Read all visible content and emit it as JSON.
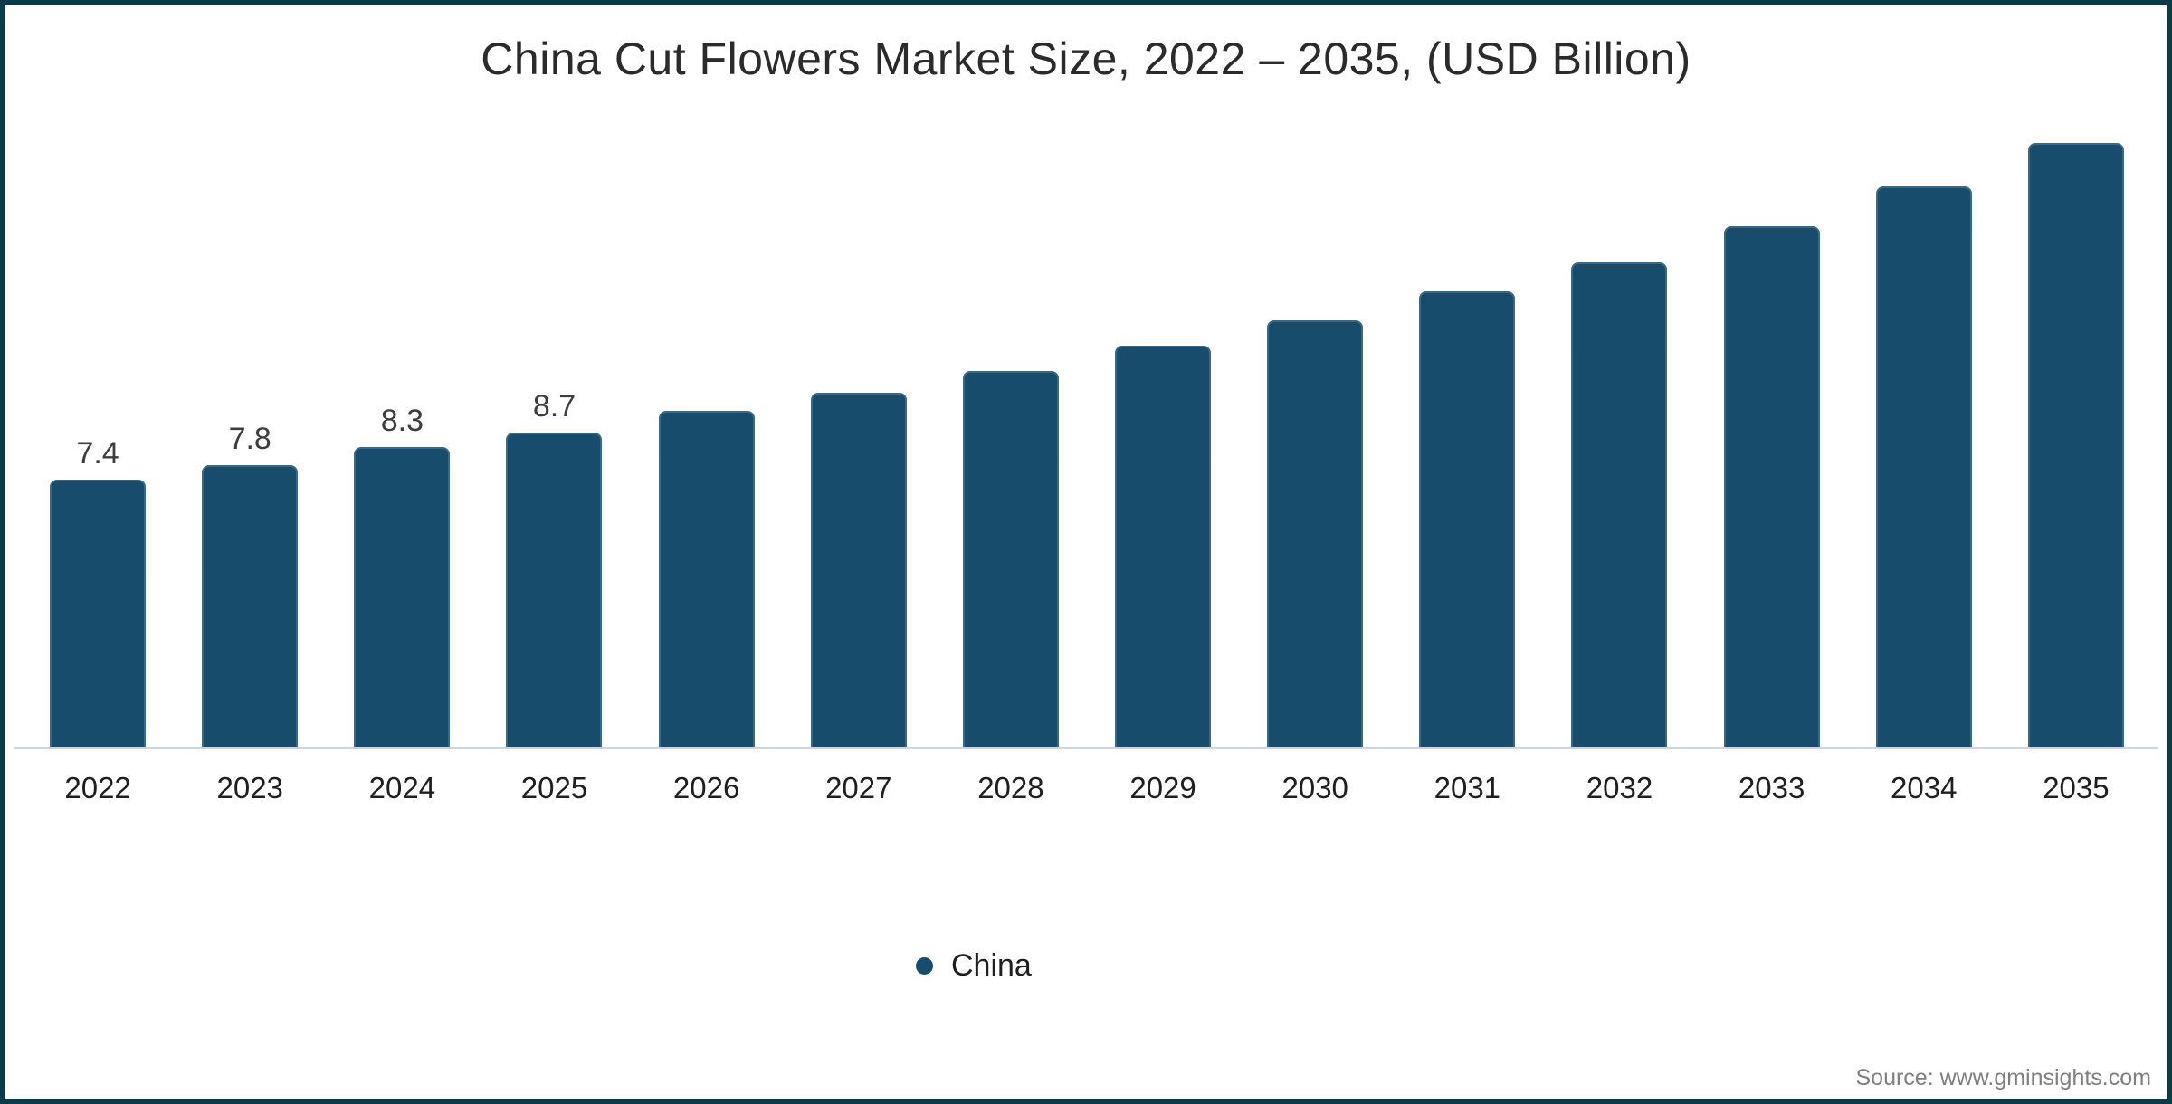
{
  "source": "Source: www.gminsights.com",
  "legend": {
    "items": [
      {
        "label": "China",
        "marker": "circle",
        "color": "#174c6c"
      }
    ]
  },
  "colors": {
    "bar_fill": "#174c6c",
    "frame_border": "#0d3a48",
    "axis_line": "#ccd4e2",
    "title_text": "#2b2b2b",
    "data_label_text": "#3d3d3d",
    "source_text": "#7f7f7f"
  },
  "chart_data": {
    "type": "bar",
    "title": "China Cut Flowers Market Size, 2022 – 2035, (USD Billion)",
    "categories": [
      "2022",
      "2023",
      "2024",
      "2025",
      "2026",
      "2027",
      "2028",
      "2029",
      "2030",
      "2031",
      "2032",
      "2033",
      "2034",
      "2035"
    ],
    "series": [
      {
        "name": "China",
        "values": [
          7.4,
          7.8,
          8.3,
          8.7,
          9.3,
          9.8,
          10.4,
          11.1,
          11.8,
          12.6,
          13.4,
          14.4,
          15.5,
          16.7
        ]
      }
    ],
    "data_labels": [
      "7.4",
      "7.8",
      "8.3",
      "8.7",
      "",
      "",
      "",
      "",
      "",
      "",
      "",
      "",
      "",
      ""
    ],
    "xlabel": "",
    "ylabel": "USD Billion",
    "ylim": [
      0,
      17.5
    ],
    "grid": false,
    "y_axis_shown": false,
    "legend_position": "bottom-center"
  }
}
